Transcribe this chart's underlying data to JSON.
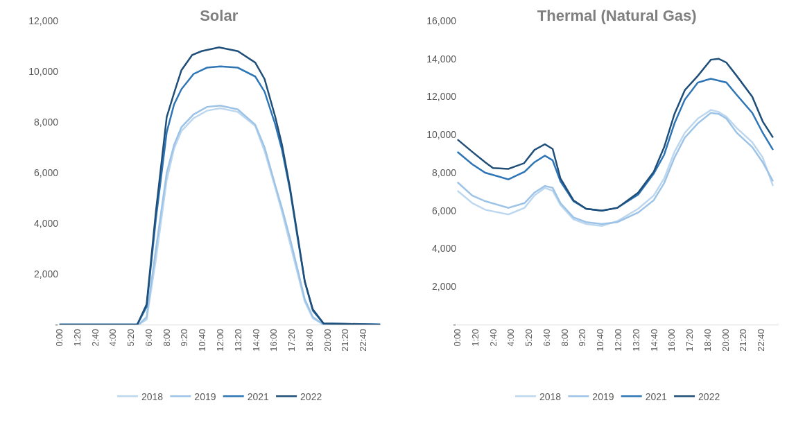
{
  "chart_data": [
    {
      "type": "line",
      "title": "Solar",
      "legend": "bottom",
      "grid": false,
      "marker": "none",
      "line_style": "solid",
      "xlim": [
        -0.04,
        23.96
      ],
      "ylim": [
        0,
        12000
      ],
      "xticks": [
        {
          "value": 0,
          "label": "0:00"
        },
        {
          "value": 1.3333,
          "label": "1:20"
        },
        {
          "value": 2.6667,
          "label": "2:40"
        },
        {
          "value": 4,
          "label": "4:00"
        },
        {
          "value": 5.3333,
          "label": "5:20"
        },
        {
          "value": 6.6667,
          "label": "6:40"
        },
        {
          "value": 8,
          "label": "8:00"
        },
        {
          "value": 9.3333,
          "label": "9:20"
        },
        {
          "value": 10.6667,
          "label": "10:40"
        },
        {
          "value": 12,
          "label": "12:00"
        },
        {
          "value": 13.3333,
          "label": "13:20"
        },
        {
          "value": 14.6667,
          "label": "14:40"
        },
        {
          "value": 16,
          "label": "16:00"
        },
        {
          "value": 17.3333,
          "label": "17:20"
        },
        {
          "value": 18.6667,
          "label": "18:40"
        },
        {
          "value": 20,
          "label": "20:00"
        },
        {
          "value": 21.3333,
          "label": "21:20"
        },
        {
          "value": 22.6667,
          "label": "22:40"
        }
      ],
      "yticks": [
        {
          "value": 0,
          "label": "-"
        },
        {
          "value": 2000,
          "label": "2,000"
        },
        {
          "value": 4000,
          "label": "4,000"
        },
        {
          "value": 6000,
          "label": "6,000"
        },
        {
          "value": 8000,
          "label": "8,000"
        },
        {
          "value": 10000,
          "label": "10,000"
        },
        {
          "value": 12000,
          "label": "12,000"
        }
      ],
      "series": [
        {
          "name": "2018",
          "color": "#bdd7ee",
          "x": [
            0,
            5.9,
            6.5,
            7.2,
            8.0,
            8.55,
            9.1,
            10,
            11,
            12,
            13.3,
            14.6,
            15.3,
            16.1,
            16.6,
            17.2,
            17.8,
            18.3,
            18.9,
            19.7,
            23.92
          ],
          "values": [
            0,
            0,
            200,
            2600,
            5700,
            6950,
            7650,
            8150,
            8450,
            8550,
            8400,
            7850,
            6850,
            5400,
            4450,
            3200,
            1950,
            900,
            250,
            0,
            0
          ]
        },
        {
          "name": "2019",
          "color": "#9dc3e6",
          "x": [
            0,
            5.9,
            6.5,
            7.2,
            8.0,
            8.55,
            9.1,
            10,
            11,
            12,
            13.3,
            14.6,
            15.3,
            16.1,
            16.6,
            17.2,
            17.8,
            18.3,
            18.9,
            19.7,
            23.92
          ],
          "values": [
            0,
            0,
            300,
            3000,
            6000,
            7100,
            7800,
            8300,
            8600,
            8650,
            8500,
            7900,
            7000,
            5500,
            4600,
            3400,
            2100,
            1000,
            300,
            0,
            0
          ]
        },
        {
          "name": "2021",
          "color": "#2e75b6",
          "x": [
            0,
            5.8,
            6.5,
            7.2,
            8.0,
            8.55,
            9.1,
            10,
            11,
            12,
            13.3,
            14.6,
            15.3,
            16.1,
            16.6,
            17.2,
            17.8,
            18.3,
            18.9,
            19.7,
            23.92
          ],
          "values": [
            0,
            0,
            700,
            4200,
            7600,
            8700,
            9300,
            9900,
            10150,
            10200,
            10150,
            9800,
            9200,
            7900,
            6900,
            5300,
            3300,
            1700,
            550,
            40,
            0
          ]
        },
        {
          "name": "2022",
          "color": "#1f4e79",
          "x": [
            0,
            5.8,
            6.5,
            7.2,
            8.0,
            8.55,
            9.1,
            9.9,
            10.6,
            11.9,
            13.3,
            14.6,
            15.3,
            16.1,
            16.6,
            17.2,
            17.8,
            18.3,
            18.9,
            19.7,
            23.92
          ],
          "values": [
            0,
            0,
            800,
            4500,
            8200,
            9150,
            10050,
            10650,
            10800,
            10950,
            10800,
            10350,
            9700,
            8200,
            7100,
            5400,
            3400,
            1700,
            600,
            50,
            0
          ]
        }
      ]
    },
    {
      "type": "line",
      "title": "Thermal (Natural Gas)",
      "legend": "bottom",
      "grid": false,
      "marker": "none",
      "line_style": "solid",
      "xlim": [
        -0.04,
        23.96
      ],
      "ylim": [
        0,
        16000
      ],
      "xticks": [
        {
          "value": 0,
          "label": "0:00"
        },
        {
          "value": 1.3333,
          "label": "1:20"
        },
        {
          "value": 2.6667,
          "label": "2:40"
        },
        {
          "value": 4,
          "label": "4:00"
        },
        {
          "value": 5.3333,
          "label": "5:20"
        },
        {
          "value": 6.6667,
          "label": "6:40"
        },
        {
          "value": 8,
          "label": "8:00"
        },
        {
          "value": 9.3333,
          "label": "9:20"
        },
        {
          "value": 10.6667,
          "label": "10:40"
        },
        {
          "value": 12,
          "label": "12:00"
        },
        {
          "value": 13.3333,
          "label": "13:20"
        },
        {
          "value": 14.6667,
          "label": "14:40"
        },
        {
          "value": 16,
          "label": "16:00"
        },
        {
          "value": 17.3333,
          "label": "17:20"
        },
        {
          "value": 18.6667,
          "label": "18:40"
        },
        {
          "value": 20,
          "label": "20:00"
        },
        {
          "value": 21.3333,
          "label": "21:20"
        },
        {
          "value": 22.6667,
          "label": "22:40"
        }
      ],
      "yticks": [
        {
          "value": 0,
          "label": "-"
        },
        {
          "value": 2000,
          "label": "2,000"
        },
        {
          "value": 4000,
          "label": "4,000"
        },
        {
          "value": 6000,
          "label": "6,000"
        },
        {
          "value": 8000,
          "label": "8,000"
        },
        {
          "value": 10000,
          "label": "10,000"
        },
        {
          "value": 12000,
          "label": "12,000"
        },
        {
          "value": 14000,
          "label": "14,000"
        },
        {
          "value": 16000,
          "label": "16,000"
        }
      ],
      "series": [
        {
          "name": "2018",
          "color": "#bdd7ee",
          "x": [
            0,
            1.1,
            2.07,
            3.8,
            5.0,
            5.74,
            6.52,
            7.1,
            7.68,
            8.65,
            9.6,
            10.77,
            11.93,
            13.48,
            14.64,
            15.42,
            16.19,
            16.96,
            17.93,
            18.9,
            19.48,
            20.06,
            20.83,
            21.99,
            22.77,
            23.54
          ],
          "values": [
            7050,
            6400,
            6050,
            5800,
            6150,
            6800,
            7200,
            7050,
            6300,
            5550,
            5300,
            5200,
            5450,
            6100,
            6800,
            7700,
            9100,
            10100,
            10850,
            11300,
            11200,
            10950,
            10350,
            9600,
            8800,
            7300
          ]
        },
        {
          "name": "2019",
          "color": "#9dc3e6",
          "x": [
            0,
            1.1,
            2.07,
            3.8,
            5.0,
            5.74,
            6.52,
            7.1,
            7.68,
            8.65,
            9.6,
            10.77,
            11.93,
            13.48,
            14.64,
            15.42,
            16.19,
            16.96,
            17.93,
            18.9,
            19.48,
            20.06,
            20.83,
            21.99,
            22.77,
            23.54
          ],
          "values": [
            7500,
            6800,
            6500,
            6150,
            6400,
            6950,
            7300,
            7200,
            6400,
            5650,
            5400,
            5300,
            5400,
            5900,
            6550,
            7450,
            8800,
            9850,
            10600,
            11150,
            11100,
            10850,
            10100,
            9350,
            8550,
            7550
          ]
        },
        {
          "name": "2021",
          "color": "#2e75b6",
          "x": [
            0,
            1.1,
            2.07,
            3.8,
            5.0,
            5.74,
            6.52,
            7.1,
            7.68,
            8.65,
            9.6,
            10.77,
            11.93,
            13.48,
            14.64,
            15.42,
            16.19,
            16.96,
            17.93,
            18.9,
            19.48,
            20.06,
            20.83,
            21.99,
            22.77,
            23.54
          ],
          "values": [
            9100,
            8450,
            8000,
            7650,
            8050,
            8550,
            8900,
            8650,
            7550,
            6500,
            6100,
            6000,
            6150,
            6850,
            7950,
            8950,
            10600,
            11850,
            12750,
            12950,
            12850,
            12750,
            12100,
            11150,
            10100,
            9200
          ]
        },
        {
          "name": "2022",
          "color": "#1f4e79",
          "x": [
            0,
            1.1,
            2.07,
            2.65,
            3.8,
            4.97,
            5.74,
            6.52,
            7.1,
            7.68,
            8.65,
            9.6,
            10.77,
            11.93,
            13.48,
            14.64,
            15.42,
            16.19,
            16.96,
            17.93,
            18.9,
            19.48,
            20.06,
            20.83,
            21.99,
            22.77,
            23.54
          ],
          "values": [
            9750,
            9100,
            8550,
            8250,
            8200,
            8500,
            9200,
            9500,
            9250,
            7700,
            6550,
            6100,
            6000,
            6150,
            6950,
            8050,
            9350,
            11100,
            12350,
            13100,
            13950,
            14000,
            13800,
            13100,
            12000,
            10700,
            9850
          ]
        }
      ]
    }
  ]
}
